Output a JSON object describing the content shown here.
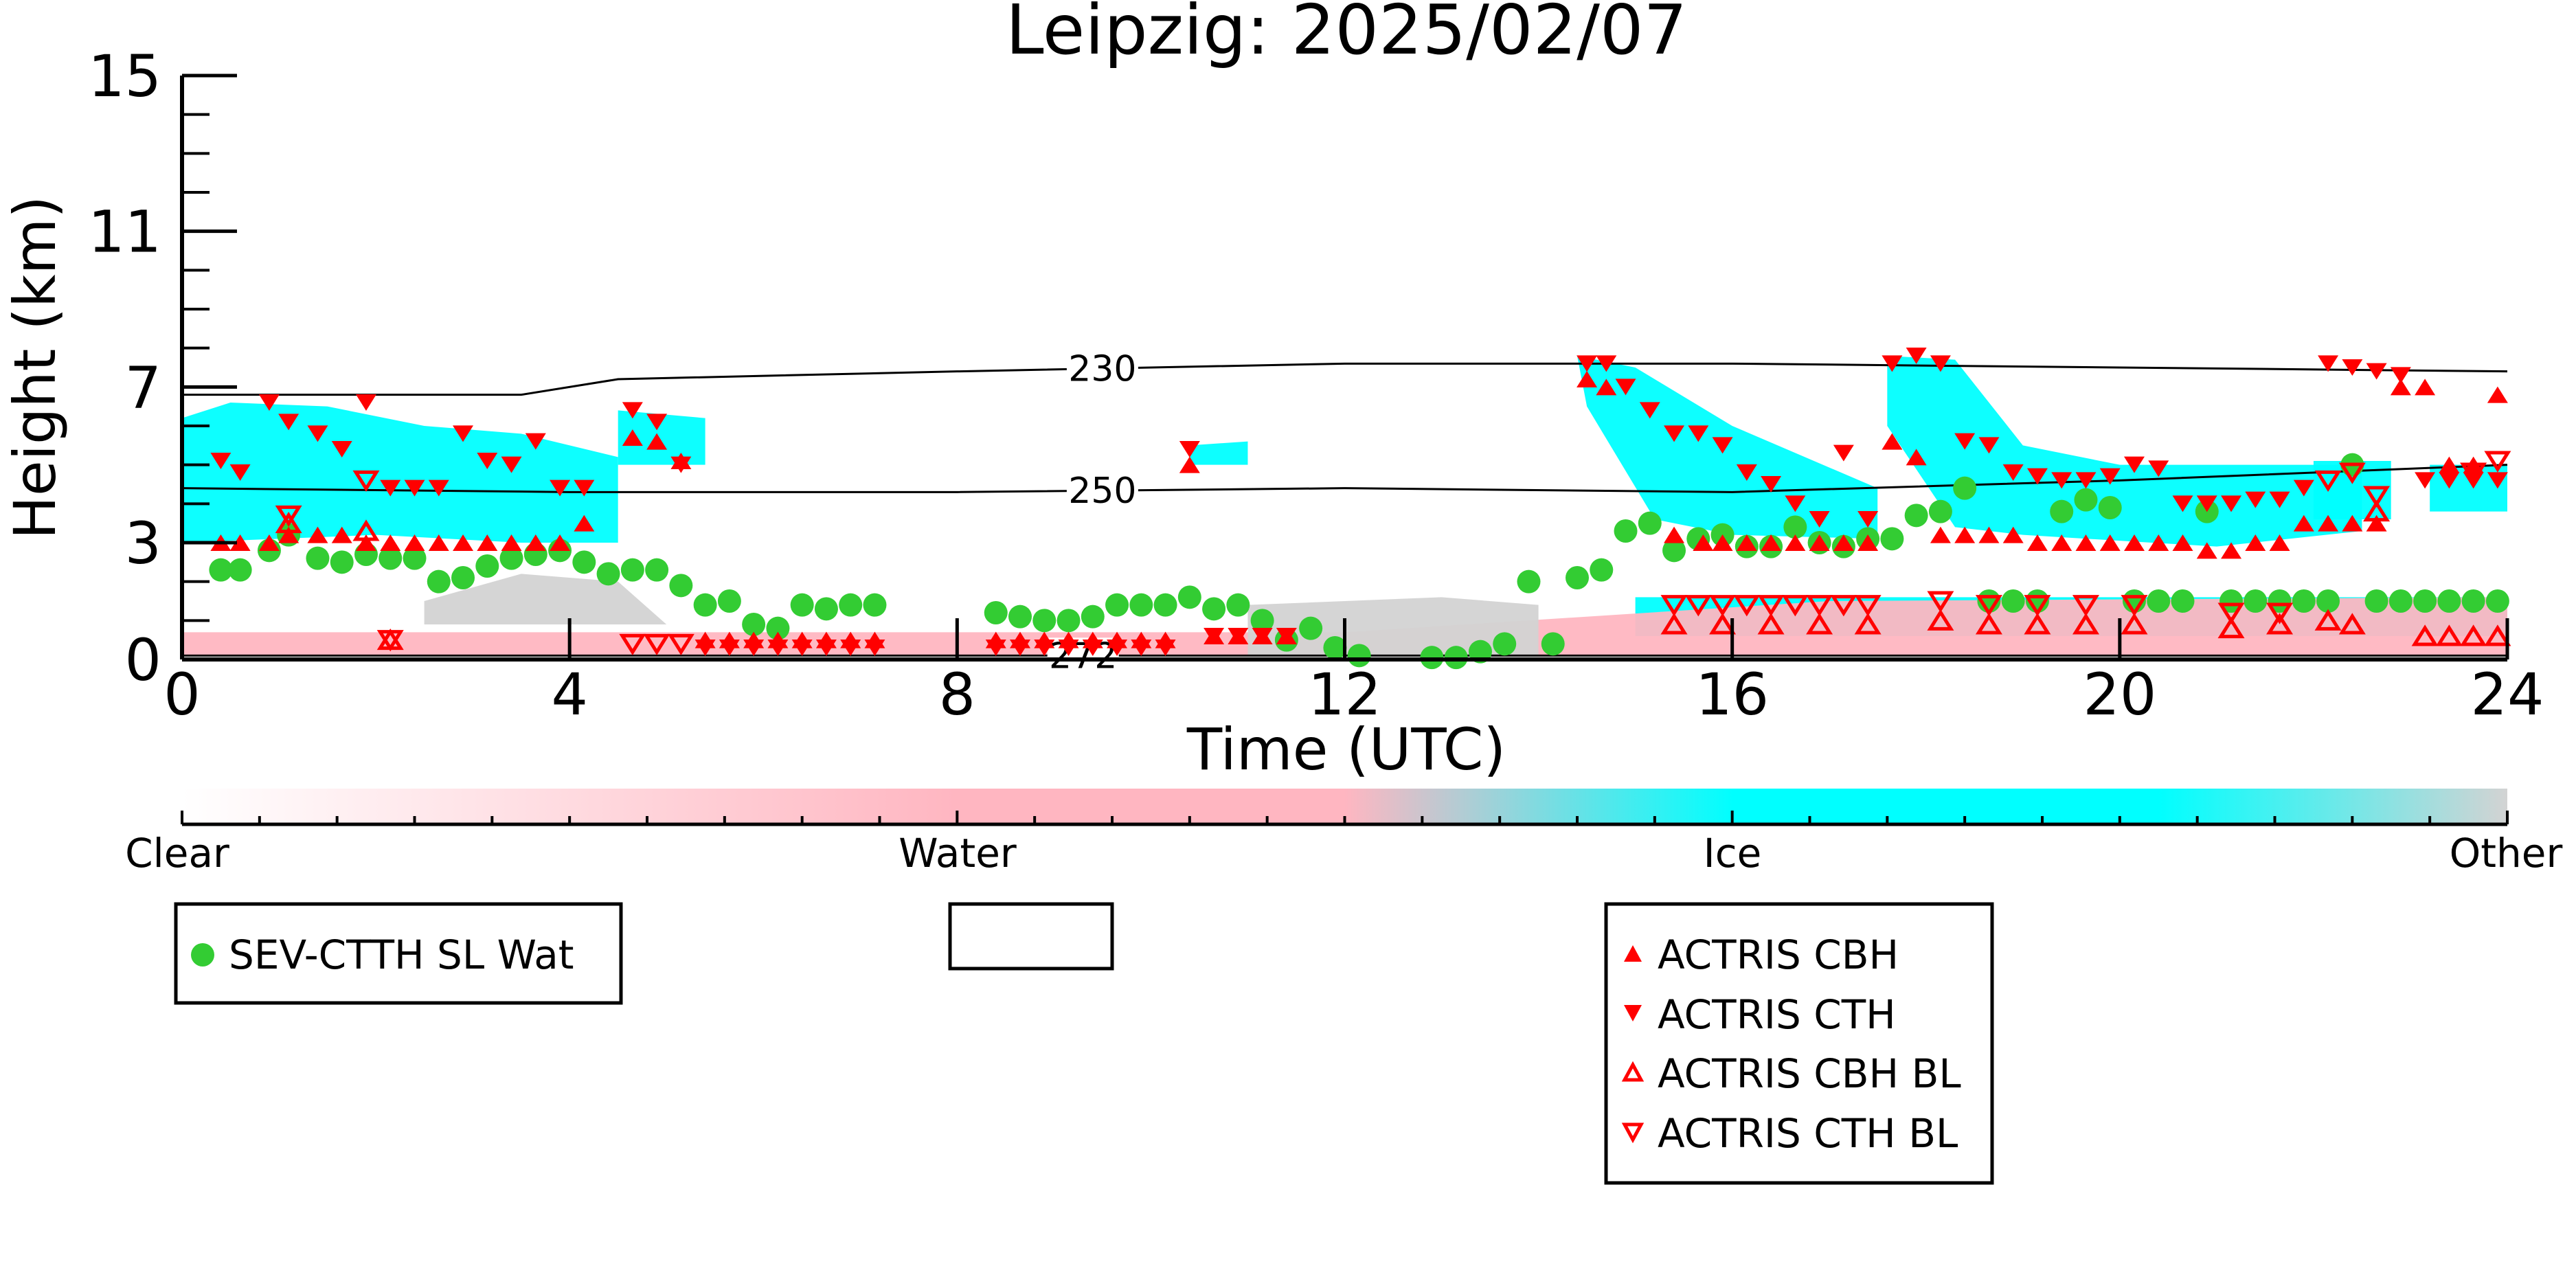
{
  "chart_data": {
    "type": "scatter",
    "title": "Leipzig: 2025/02/07",
    "xlabel": "Time (UTC)",
    "ylabel": "Height (km)",
    "xlim": [
      0,
      24
    ],
    "ylim": [
      0,
      15
    ],
    "xticks": [
      0,
      4,
      8,
      12,
      16,
      20,
      24
    ],
    "xtick_labels": [
      "0",
      "4",
      "8",
      "12",
      "16",
      "20",
      "24"
    ],
    "yticks": [
      0,
      3,
      7,
      11,
      15
    ],
    "ytick_labels": [
      "0",
      "3",
      "7",
      "11",
      "15"
    ],
    "grid": false,
    "colorbar": {
      "labels": [
        "Clear",
        "Water",
        "Ice",
        "Other"
      ],
      "colors": [
        "#ffffff",
        "#ffb6c1",
        "#00ffff",
        "#d3d3d3"
      ]
    },
    "contours": [
      {
        "label": "230",
        "label_x": 9.5,
        "x": [
          0,
          3.5,
          4.5,
          8,
          12,
          16,
          20,
          24
        ],
        "y": [
          6.8,
          6.8,
          7.2,
          7.4,
          7.6,
          7.6,
          7.5,
          7.4
        ]
      },
      {
        "label": "250",
        "label_x": 9.5,
        "x": [
          0,
          4,
          8,
          12,
          16,
          20,
          24
        ],
        "y": [
          4.4,
          4.3,
          4.3,
          4.4,
          4.3,
          4.6,
          5.0
        ]
      },
      {
        "label": "272",
        "label_x": 9.3,
        "x": [
          0,
          24
        ],
        "y": [
          0.1,
          0.1
        ]
      }
    ],
    "cloud_regions": [
      {
        "phase": "ice",
        "color": "#00ffff",
        "polygon": [
          [
            0,
            6.2
          ],
          [
            0.5,
            6.6
          ],
          [
            1.5,
            6.5
          ],
          [
            2.5,
            6.0
          ],
          [
            3.5,
            5.8
          ],
          [
            4.5,
            5.2
          ],
          [
            4.5,
            3.0
          ],
          [
            3.5,
            3.0
          ],
          [
            2,
            3.2
          ],
          [
            0,
            3.0
          ]
        ]
      },
      {
        "phase": "ice",
        "color": "#00ffff",
        "polygon": [
          [
            4.5,
            6.4
          ],
          [
            5.4,
            6.2
          ],
          [
            5.4,
            5.0
          ],
          [
            4.5,
            5.0
          ]
        ]
      },
      {
        "phase": "ice",
        "color": "#00ffff",
        "polygon": [
          [
            10.4,
            5.5
          ],
          [
            11,
            5.6
          ],
          [
            11,
            5.0
          ],
          [
            10.4,
            5.0
          ]
        ]
      },
      {
        "phase": "ice",
        "color": "#00ffff",
        "polygon": [
          [
            14.4,
            7.8
          ],
          [
            15,
            7.5
          ],
          [
            16,
            6.0
          ],
          [
            17.5,
            4.4
          ],
          [
            17.5,
            3.1
          ],
          [
            16,
            3.2
          ],
          [
            15.2,
            3.6
          ],
          [
            14.5,
            6.5
          ]
        ]
      },
      {
        "phase": "ice",
        "color": "#00ffff",
        "polygon": [
          [
            17.6,
            7.8
          ],
          [
            18.3,
            7.7
          ],
          [
            19,
            5.5
          ],
          [
            20,
            5.0
          ],
          [
            22.5,
            5.0
          ],
          [
            22.5,
            3.3
          ],
          [
            21,
            2.9
          ],
          [
            19,
            3.2
          ],
          [
            18.3,
            3.4
          ],
          [
            17.6,
            6.0
          ]
        ]
      },
      {
        "phase": "ice",
        "color": "#00ffff",
        "polygon": [
          [
            22,
            5.1
          ],
          [
            22.8,
            5.1
          ],
          [
            22.8,
            3.6
          ],
          [
            22,
            3.6
          ]
        ]
      },
      {
        "phase": "ice",
        "color": "#00ffff",
        "polygon": [
          [
            23.2,
            5.0
          ],
          [
            24,
            5.0
          ],
          [
            24,
            3.8
          ],
          [
            23.2,
            3.8
          ]
        ]
      },
      {
        "phase": "ice",
        "color": "#00ffff",
        "polygon": [
          [
            15,
            1.6
          ],
          [
            24,
            1.6
          ],
          [
            24,
            0.6
          ],
          [
            15,
            0.6
          ]
        ]
      },
      {
        "phase": "water",
        "color": "#ffb6c1",
        "polygon": [
          [
            0,
            0.7
          ],
          [
            12,
            0.7
          ],
          [
            17,
            1.5
          ],
          [
            24,
            1.6
          ],
          [
            24,
            0.1
          ],
          [
            0,
            0.1
          ]
        ]
      },
      {
        "phase": "other",
        "color": "#d3d3d3",
        "polygon": [
          [
            2.5,
            1.5
          ],
          [
            3.5,
            2.2
          ],
          [
            4.5,
            2.0
          ],
          [
            5,
            0.9
          ],
          [
            2.5,
            0.9
          ]
        ]
      },
      {
        "phase": "other",
        "color": "#d3d3d3",
        "polygon": [
          [
            11,
            1.4
          ],
          [
            13,
            1.6
          ],
          [
            14,
            1.4
          ],
          [
            14,
            0.1
          ],
          [
            11,
            0.1
          ]
        ]
      }
    ],
    "series": [
      {
        "name": "SEV-CTTH SL Wat",
        "marker": "circle",
        "filled": true,
        "color": "#33cc33",
        "x": [
          0.4,
          0.6,
          0.9,
          1.1,
          1.4,
          1.65,
          1.9,
          2.15,
          2.4,
          2.65,
          2.9,
          3.15,
          3.4,
          3.65,
          3.9,
          4.15,
          4.4,
          4.65,
          4.9,
          5.15,
          5.4,
          5.65,
          5.9,
          6.15,
          6.4,
          6.65,
          6.9,
          7.15,
          8.4,
          8.65,
          8.9,
          9.15,
          9.4,
          9.65,
          9.9,
          10.15,
          10.4,
          10.65,
          10.9,
          11.15,
          11.4,
          11.65,
          11.9,
          12.15,
          12.9,
          13.15,
          13.4,
          13.65,
          13.9,
          14.15,
          14.4,
          14.65,
          14.9,
          15.15,
          15.4,
          15.65,
          15.9,
          16.15,
          16.4,
          16.65,
          16.9,
          17.15,
          17.4,
          17.65,
          17.9,
          18.15,
          18.4,
          18.65,
          18.9,
          19.15,
          19.4,
          19.65,
          19.9,
          20.15,
          20.4,
          20.65,
          20.9,
          21.15,
          21.4,
          21.65,
          21.9,
          22.15,
          22.4,
          22.65,
          22.9,
          23.15,
          23.4,
          23.65,
          23.9
        ],
        "y": [
          2.3,
          2.3,
          2.8,
          3.2,
          2.6,
          2.5,
          2.7,
          2.6,
          2.6,
          2.0,
          2.1,
          2.4,
          2.6,
          2.7,
          2.8,
          2.5,
          2.2,
          2.3,
          2.3,
          1.9,
          1.4,
          1.5,
          0.9,
          0.8,
          1.4,
          1.3,
          1.4,
          1.4,
          1.2,
          1.1,
          1.0,
          1.0,
          1.1,
          1.4,
          1.4,
          1.4,
          1.6,
          1.3,
          1.4,
          1.0,
          0.5,
          0.8,
          0.3,
          0.1,
          0.05,
          0.05,
          0.2,
          0.4,
          2.0,
          0.4,
          2.1,
          2.3,
          3.3,
          3.5,
          2.8,
          3.1,
          3.2,
          2.9,
          2.9,
          3.4,
          3.0,
          2.9,
          3.1,
          3.1,
          3.7,
          3.8,
          4.4,
          1.5,
          1.5,
          1.5,
          3.8,
          4.1,
          3.9,
          1.5,
          1.5,
          1.5,
          3.8,
          1.5,
          1.5,
          1.5,
          1.5,
          1.5,
          5.0,
          1.5,
          1.5,
          1.5,
          1.5,
          1.5,
          1.5
        ]
      },
      {
        "name": "ACTRIS CBH",
        "marker": "triangle-up",
        "filled": true,
        "color": "#ff0000",
        "x": [
          0.4,
          0.6,
          0.9,
          1.1,
          1.4,
          1.65,
          1.9,
          2.15,
          2.4,
          2.65,
          2.9,
          3.15,
          3.4,
          3.65,
          3.9,
          4.15,
          4.65,
          4.9,
          5.15,
          5.4,
          5.65,
          5.9,
          6.15,
          6.4,
          6.65,
          6.9,
          7.15,
          8.4,
          8.65,
          8.9,
          9.15,
          9.4,
          9.65,
          9.9,
          10.15,
          10.4,
          10.65,
          10.9,
          11.15,
          11.4,
          14.5,
          14.7,
          15.4,
          15.7,
          15.9,
          16.15,
          16.4,
          16.65,
          16.9,
          17.15,
          17.4,
          17.65,
          17.9,
          18.15,
          18.4,
          18.65,
          18.9,
          19.15,
          19.4,
          19.65,
          19.9,
          20.15,
          20.4,
          20.65,
          20.9,
          21.15,
          21.4,
          21.65,
          21.9,
          22.15,
          22.4,
          22.65,
          22.9,
          23.15,
          23.4,
          23.65,
          23.9
        ],
        "y": [
          3.0,
          3.0,
          3.0,
          3.2,
          3.2,
          3.2,
          3.0,
          3.0,
          3.0,
          3.0,
          3.0,
          3.0,
          3.0,
          3.0,
          3.0,
          3.5,
          5.7,
          5.6,
          5.1,
          0.5,
          0.5,
          0.5,
          0.5,
          0.5,
          0.5,
          0.5,
          0.5,
          0.5,
          0.5,
          0.5,
          0.5,
          0.5,
          0.5,
          0.5,
          0.5,
          5.0,
          0.6,
          0.6,
          0.6,
          0.6,
          7.2,
          7.0,
          3.2,
          3.0,
          3.0,
          3.0,
          3.0,
          3.0,
          3.0,
          3.0,
          3.0,
          5.6,
          5.2,
          3.2,
          3.2,
          3.2,
          3.2,
          3.0,
          3.0,
          3.0,
          3.0,
          3.0,
          3.0,
          3.0,
          2.8,
          2.8,
          3.0,
          3.0,
          3.5,
          3.5,
          3.5,
          3.5,
          7.0,
          7.0,
          5.0,
          5.0,
          6.8
        ],
        "y_note": "values read from marker positions"
      },
      {
        "name": "ACTRIS CTH",
        "marker": "triangle-down",
        "filled": true,
        "color": "#ff0000",
        "x": [
          0.4,
          0.6,
          0.9,
          1.1,
          1.4,
          1.65,
          1.9,
          2.15,
          2.4,
          2.65,
          2.9,
          3.15,
          3.4,
          3.65,
          3.9,
          4.15,
          4.65,
          4.9,
          5.15,
          5.4,
          5.65,
          5.9,
          6.15,
          6.4,
          6.65,
          6.9,
          7.15,
          8.4,
          8.65,
          8.9,
          9.15,
          9.4,
          9.65,
          9.9,
          10.15,
          10.4,
          10.65,
          10.9,
          11.15,
          11.4,
          14.5,
          14.7,
          14.9,
          15.15,
          15.4,
          15.65,
          15.9,
          16.15,
          16.4,
          16.65,
          16.9,
          17.15,
          17.4,
          17.65,
          17.9,
          18.15,
          18.4,
          18.65,
          18.9,
          19.15,
          19.4,
          19.65,
          19.9,
          20.15,
          20.4,
          20.65,
          20.9,
          21.15,
          21.4,
          21.65,
          21.9,
          22.15,
          22.4,
          22.65,
          22.9,
          23.15,
          23.4,
          23.65,
          23.9
        ],
        "y": [
          5.1,
          4.8,
          6.6,
          6.1,
          5.8,
          5.4,
          6.6,
          4.4,
          4.4,
          4.4,
          5.8,
          5.1,
          5.0,
          5.6,
          4.4,
          4.4,
          6.4,
          6.1,
          5.0,
          0.3,
          0.3,
          0.3,
          0.3,
          0.3,
          0.3,
          0.3,
          0.3,
          0.3,
          0.3,
          0.3,
          0.3,
          0.3,
          0.3,
          0.3,
          0.3,
          5.4,
          0.6,
          0.6,
          0.6,
          0.6,
          7.6,
          7.6,
          7.0,
          6.4,
          5.8,
          5.8,
          5.5,
          4.8,
          4.5,
          4.0,
          3.6,
          5.3,
          3.6,
          7.6,
          7.8,
          7.6,
          5.6,
          5.5,
          4.8,
          4.7,
          4.6,
          4.6,
          4.7,
          5.0,
          4.9,
          4.0,
          4.0,
          4.0,
          4.1,
          4.1,
          4.4,
          7.6,
          7.5,
          7.4,
          7.3,
          4.6,
          4.6,
          4.6,
          4.6
        ],
        "y_note": "values read from marker positions"
      },
      {
        "name": "ACTRIS CBH BL",
        "marker": "triangle-up",
        "filled": false,
        "color": "#ff0000",
        "x": [
          1.1,
          1.9,
          2.15,
          15.4,
          15.9,
          16.4,
          16.9,
          17.4,
          18.15,
          18.65,
          19.15,
          19.65,
          20.15,
          21.15,
          21.65,
          22.15,
          22.4,
          22.65,
          23.15,
          23.4,
          23.65,
          23.9
        ],
        "y": [
          3.5,
          3.3,
          0.5,
          0.9,
          0.9,
          0.9,
          0.9,
          0.9,
          1.0,
          0.9,
          0.9,
          0.9,
          0.9,
          0.8,
          0.9,
          1.0,
          0.9,
          3.8,
          0.6,
          0.6,
          0.6,
          0.6
        ]
      },
      {
        "name": "ACTRIS CTH BL",
        "marker": "triangle-down",
        "filled": false,
        "color": "#ff0000",
        "x": [
          1.1,
          1.9,
          2.15,
          4.65,
          4.9,
          5.15,
          15.4,
          15.65,
          15.9,
          16.15,
          16.4,
          16.65,
          16.9,
          17.15,
          17.4,
          18.15,
          18.65,
          19.15,
          19.65,
          20.15,
          21.15,
          21.65,
          22.15,
          22.4,
          22.65,
          23.65,
          23.9
        ],
        "y": [
          3.7,
          4.6,
          0.5,
          0.4,
          0.4,
          0.4,
          1.4,
          1.4,
          1.4,
          1.4,
          1.4,
          1.4,
          1.4,
          1.4,
          1.4,
          1.5,
          1.4,
          1.4,
          1.4,
          1.4,
          1.2,
          1.2,
          4.6,
          4.8,
          4.2,
          4.8,
          5.1
        ]
      }
    ],
    "legends": [
      {
        "position": "lower-left",
        "entries": [
          "SEV-CTTH SL Wat"
        ]
      },
      {
        "position": "lower-center",
        "entries": []
      },
      {
        "position": "lower-right",
        "entries": [
          "ACTRIS CBH",
          "ACTRIS CTH",
          "ACTRIS CBH BL",
          "ACTRIS CTH BL"
        ]
      }
    ]
  }
}
